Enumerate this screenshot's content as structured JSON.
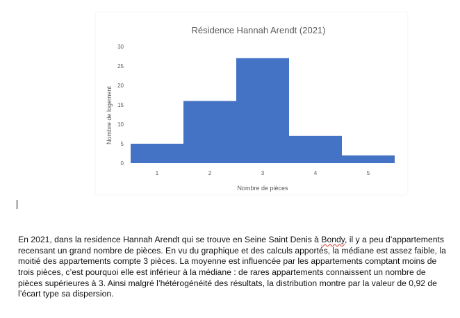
{
  "chart_data": {
    "type": "bar",
    "title": "Résidence Hannah Arendt (2021)",
    "xlabel": "Nombre de pièces",
    "ylabel": "Nombre de logement",
    "categories": [
      "1",
      "2",
      "3",
      "4",
      "5"
    ],
    "values": [
      5,
      16,
      27,
      7,
      2
    ],
    "ylim": [
      0,
      30
    ],
    "yticks": [
      "0",
      "5",
      "10",
      "15",
      "20",
      "25",
      "30"
    ],
    "bar_color": "#4472C4",
    "grid": false,
    "legend": "none"
  },
  "document": {
    "paragraph_part1": "En 2021, dans la residence Hannah Arendt qui se trouve en Seine Saint Denis à ",
    "misspelled_word": "Bondy",
    "paragraph_part2": ", il y a peu d’appartements recensant un grand nombre de pièces. En vu du graphique et des calculs apportés, la médiane est assez faible, la moitié des appartements compte 3 pièces. La moyenne est influencée par les appartements comptant moins de trois pièces, c’est pourquoi elle est inférieur à la médiane : de rares appartements connaissent un nombre de pièces supérieures à 3. Ainsi malgré l’hétérogénéité des résultats, la distribution montre par la valeur de 0,92 de l’écart type sa dispersion."
  }
}
